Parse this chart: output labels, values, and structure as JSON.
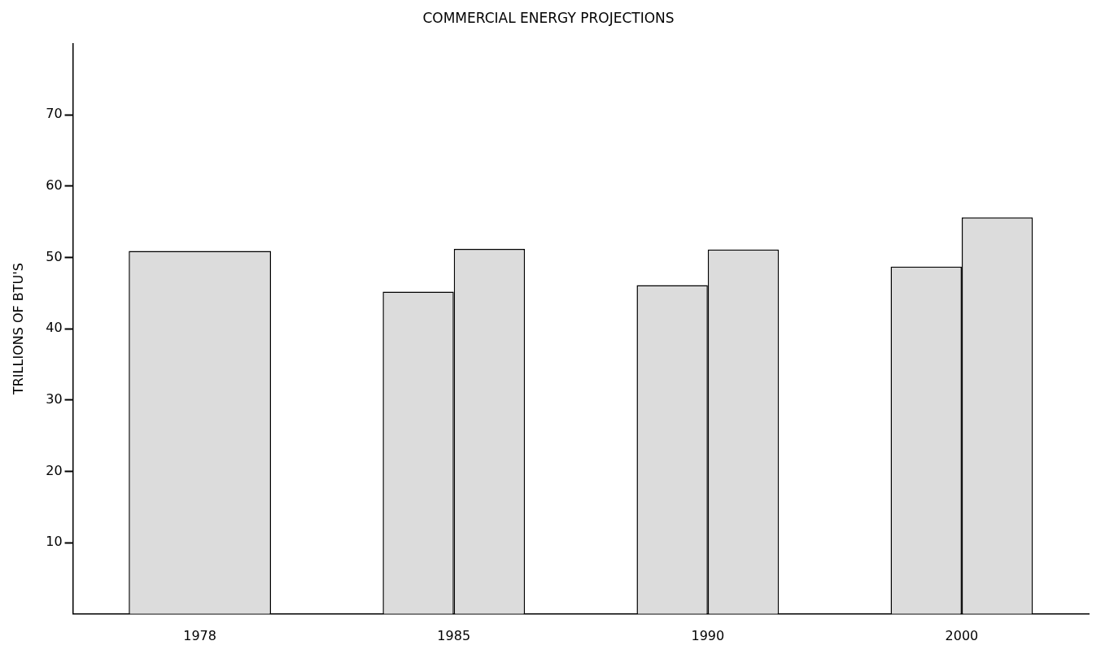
{
  "chart_data": {
    "type": "bar",
    "title": "COMMERCIAL ENERGY PROJECTIONS",
    "ylabel": "TRILLIONS OF BTU'S",
    "categories": [
      "1978",
      "1985",
      "1990",
      "2000"
    ],
    "series": [
      {
        "color": "#dcdcdc",
        "values": [
          50.9,
          45.2,
          46.1,
          48.7
        ]
      },
      {
        "color": "#dcdcdc",
        "values": [
          null,
          51.2,
          51.1,
          55.6
        ]
      }
    ],
    "ylim": [
      0,
      80
    ],
    "yticks": [
      10,
      20,
      30,
      40,
      50,
      60,
      70
    ],
    "grid": false,
    "legend": false
  }
}
